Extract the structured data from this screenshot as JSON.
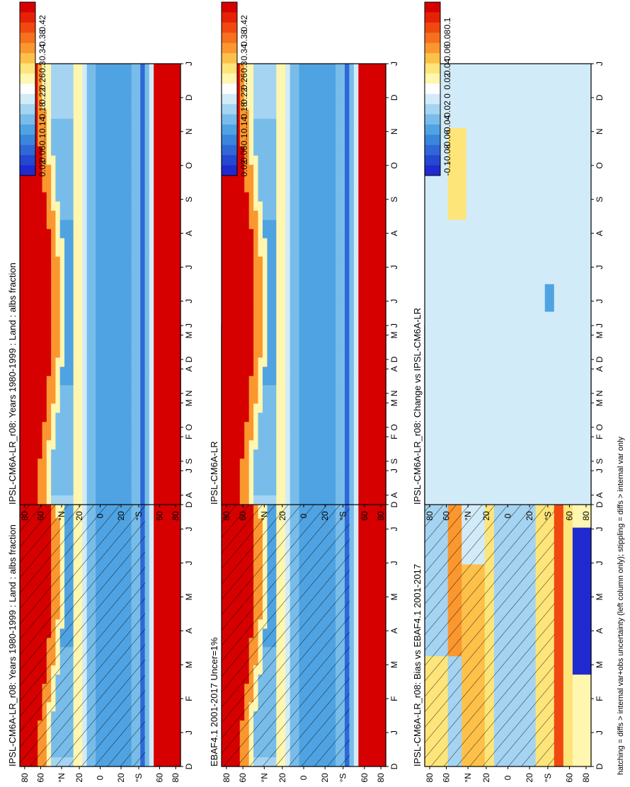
{
  "footer": "hatching = diffs > internal var+obs uncertainty (left column only); stippling = diffs > internal var only",
  "colors": {
    "abs_scale": [
      "#d70000",
      "#e52206",
      "#f0480f",
      "#f6701e",
      "#fb972f",
      "#fdc14a",
      "#fee57a",
      "#fff6b0",
      "#ffffff",
      "#d2ebf8",
      "#a4d4f1",
      "#78bde9",
      "#4fa3e2",
      "#3a86dc",
      "#2f68d6",
      "#2548d0",
      "#1f2ad0"
    ],
    "diff_scale": [
      "#d70000",
      "#e52206",
      "#f0480f",
      "#f6701e",
      "#fb972f",
      "#fdc14a",
      "#fee57a",
      "#fff6b0",
      "#ffffff",
      "#d2ebf8",
      "#a4d4f1",
      "#78bde9",
      "#4fa3e2",
      "#3a86dc",
      "#2f68d6",
      "#2548d0",
      "#1f2ad0"
    ]
  },
  "colorbars": {
    "abs_ticks": [
      "0.42",
      "0.38",
      "0.34",
      "0.3",
      "0.26",
      "0.22",
      "0.18",
      "0.14",
      "0.1",
      "0.06",
      "0.02"
    ],
    "diff_ticks": [
      "0.1",
      "0.08",
      "0.06",
      "0.04",
      "0.02",
      "0",
      "-0.02",
      "-0.04",
      "-0.06",
      "-0.08",
      "-0.1"
    ]
  },
  "chart_data": [
    {
      "type": "heatmap",
      "id": "left-top",
      "title": "IPSL-CM6A-LR_r08: Years 1980-1999 : Land : albs fraction",
      "x_ticks": [
        "D",
        "J",
        "F",
        "M",
        "A",
        "M",
        "J",
        "J",
        "A",
        "S",
        "O",
        "N",
        "D",
        "J"
      ],
      "y_ticks": [
        "80",
        "60",
        "°N",
        "20",
        "0",
        "20",
        "°S",
        "60",
        "80"
      ],
      "scale": "abs",
      "hatched": true
    },
    {
      "type": "heatmap",
      "id": "right-top",
      "title": "IPSL-CM6A-LR_r08: Years 1980-1999 : Land : albs fraction",
      "x_ticks": [
        "D",
        "J",
        "F",
        "M",
        "A",
        "M",
        "J",
        "J",
        "A",
        "S",
        "O",
        "N",
        "D",
        "J"
      ],
      "y_ticks": [
        "80",
        "60",
        "°N",
        "20",
        "0",
        "20",
        "°S",
        "60",
        "80"
      ],
      "scale": "abs",
      "hatched": false
    },
    {
      "type": "heatmap",
      "id": "left-middle",
      "title": "EBAF4.1 2001-2017 Uncer=1%",
      "x_ticks": [
        "D",
        "J",
        "F",
        "M",
        "A",
        "M",
        "J",
        "J",
        "A",
        "S",
        "O",
        "N",
        "D",
        "J"
      ],
      "y_ticks": [
        "80",
        "60",
        "°N",
        "20",
        "0",
        "20",
        "°S",
        "60",
        "80"
      ],
      "scale": "abs",
      "hatched": true
    },
    {
      "type": "heatmap",
      "id": "right-middle",
      "title": "IPSL-CM6A-LR",
      "x_ticks": [
        "D",
        "J",
        "F",
        "M",
        "A",
        "M",
        "J",
        "J",
        "A",
        "S",
        "O",
        "N",
        "D",
        "J"
      ],
      "y_ticks": [
        "80",
        "60",
        "°N",
        "20",
        "0",
        "20",
        "°S",
        "60",
        "80"
      ],
      "scale": "abs",
      "hatched": false
    },
    {
      "type": "heatmap",
      "id": "left-bottom",
      "title": "IPSL-CM6A-LR_r08: Bias vs EBAF4.1 2001-2017",
      "x_ticks": [
        "D",
        "J",
        "F",
        "M",
        "A",
        "M",
        "J",
        "J",
        "A",
        "S",
        "O",
        "N",
        "D",
        "J"
      ],
      "y_ticks": [
        "80",
        "60",
        "°N",
        "20",
        "0",
        "20",
        "°S",
        "60",
        "80"
      ],
      "scale": "diff",
      "hatched": true
    },
    {
      "type": "heatmap",
      "id": "right-bottom",
      "title": "IPSL-CM6A-LR_r08: Change vs IPSL-CM6A-LR",
      "x_ticks": [
        "D",
        "J",
        "F",
        "M",
        "A",
        "M",
        "J",
        "J",
        "A",
        "S",
        "O",
        "N",
        "D",
        "J"
      ],
      "y_ticks": [
        "80",
        "60",
        "°N",
        "20",
        "0",
        "20",
        "°S",
        "60",
        "80"
      ],
      "scale": "diff",
      "hatched": false
    }
  ]
}
